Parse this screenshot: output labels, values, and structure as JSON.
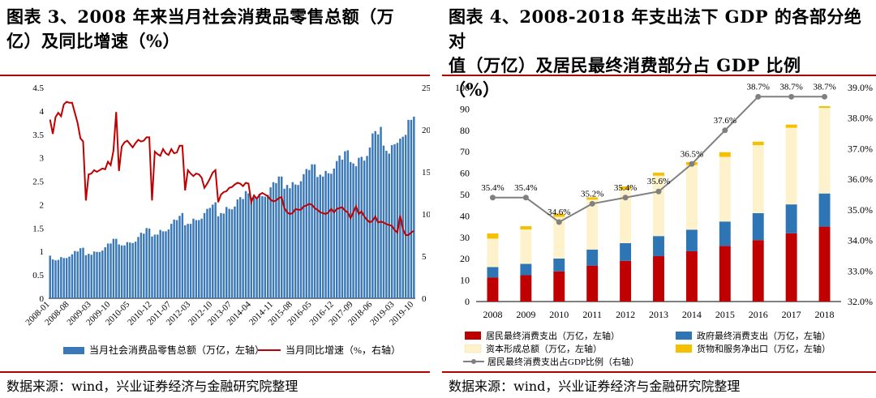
{
  "left": {
    "title_line1": "图表 3、2008 年来当月社会消费品零售总额（万",
    "title_line2": "亿）及同比增速（%）",
    "source": "数据来源：wind，兴业证券经济与金融研究院整理",
    "colors": {
      "bar": "#3a78b8",
      "line": "#c00000",
      "rule": "#b30000"
    },
    "chart_data": {
      "type": "bar+line",
      "x_tick_labels": [
        "2008-01",
        "2008-08",
        "2009-03",
        "2009-10",
        "2010-05",
        "2010-12",
        "2011-07",
        "2012-03",
        "2012-10",
        "2013-07",
        "2014-04",
        "2014-11",
        "2015-08",
        "2016-05",
        "2016-12",
        "2017-09",
        "2018-06",
        "2019-03",
        "2019-10"
      ],
      "yleft_ticks": [
        "0",
        "0.5",
        "1",
        "1.5",
        "2",
        "2.5",
        "3",
        "3.5",
        "4",
        "4.5"
      ],
      "yright_ticks": [
        "0",
        "5",
        "10",
        "15",
        "20",
        "25"
      ],
      "ylim_left": [
        0,
        4.5
      ],
      "ylim_right": [
        0,
        25
      ],
      "legend": [
        "当月社会消费品零售总额（万亿，左轴）",
        "当月同比增速（%，右轴）"
      ],
      "series": [
        {
          "name": "当月社会消费品零售总额（万亿，左轴）",
          "axis": "left",
          "type": "bar",
          "values": [
            0.91,
            0.83,
            0.81,
            0.82,
            0.88,
            0.86,
            0.86,
            0.89,
            0.94,
            1.01,
            1.0,
            1.07,
            1.08,
            0.92,
            0.95,
            0.93,
            1.0,
            0.99,
            0.99,
            1.02,
            1.09,
            1.17,
            1.17,
            1.27,
            1.27,
            1.15,
            1.13,
            1.13,
            1.2,
            1.19,
            1.18,
            1.21,
            1.31,
            1.4,
            1.38,
            1.5,
            1.49,
            1.32,
            1.36,
            1.36,
            1.46,
            1.43,
            1.43,
            1.47,
            1.59,
            1.68,
            1.67,
            1.76,
            1.82,
            1.56,
            1.59,
            1.59,
            1.7,
            1.67,
            1.67,
            1.7,
            1.82,
            1.91,
            1.93,
            2.0,
            2.05,
            1.75,
            1.82,
            1.81,
            1.95,
            1.91,
            1.9,
            1.96,
            2.11,
            2.16,
            2.12,
            2.29,
            2.24,
            2.15,
            2.15,
            2.11,
            2.23,
            2.18,
            2.17,
            2.21,
            2.37,
            2.48,
            2.46,
            2.6,
            2.6,
            2.34,
            2.42,
            2.35,
            2.48,
            2.43,
            2.42,
            2.5,
            2.65,
            2.76,
            2.74,
            2.86,
            2.86,
            2.59,
            2.64,
            2.6,
            2.72,
            2.67,
            2.66,
            2.77,
            2.93,
            3.05,
            2.96,
            3.14,
            3.16,
            2.91,
            2.88,
            2.82,
            3.0,
            3.02,
            2.94,
            3.04,
            3.22,
            3.52,
            3.57,
            3.5,
            3.66,
            3.26,
            3.15,
            3.09,
            3.27,
            3.29,
            3.32,
            3.41,
            3.45,
            3.49,
            3.81,
            3.81,
            3.88
          ],
          "note_first_label": "2008-01"
        },
        {
          "name": "当月同比增速（%，右轴）",
          "axis": "right",
          "type": "line",
          "values": [
            21.2,
            19.5,
            21.5,
            22.0,
            21.6,
            23.0,
            23.3,
            23.2,
            23.2,
            22.0,
            20.8,
            19.0,
            18.6,
            11.6,
            14.7,
            14.8,
            15.2,
            15.0,
            15.2,
            15.4,
            15.3,
            16.2,
            15.8,
            17.5,
            22.1,
            15.1,
            18.0,
            18.5,
            18.7,
            18.3,
            17.9,
            18.4,
            18.8,
            18.6,
            18.7,
            19.1,
            19.1,
            11.6,
            17.4,
            17.1,
            16.9,
            17.7,
            17.2,
            17.0,
            17.7,
            17.2,
            17.3,
            18.1,
            18.1,
            12.8,
            15.2,
            14.8,
            14.5,
            14.8,
            14.7,
            14.3,
            13.1,
            13.6,
            14.2,
            14.9,
            15.2,
            11.4,
            12.3,
            12.6,
            12.7,
            13.1,
            13.2,
            13.5,
            13.7,
            13.6,
            13.3,
            13.7,
            13.6,
            11.4,
            12.2,
            11.8,
            12.3,
            12.5,
            12.3,
            12.1,
            11.7,
            11.5,
            11.6,
            11.9,
            12.0,
            10.7,
            10.2,
            10.0,
            10.1,
            10.6,
            10.5,
            10.5,
            10.9,
            11.0,
            11.2,
            11.1,
            10.7,
            10.5,
            10.2,
            10.1,
            10.0,
            10.2,
            10.6,
            10.2,
            10.6,
            10.7,
            10.8,
            10.4,
            10.2,
            9.5,
            10.2,
            10.9,
            10.0,
            10.3,
            9.7,
            9.3,
            9.0,
            9.2,
            9.7,
            9.0,
            9.1,
            9.0,
            8.8,
            8.7,
            8.6,
            8.1,
            7.8,
            9.8,
            8.2,
            7.5,
            7.5,
            7.8,
            8.0
          ],
          "first_label": "2008-01"
        }
      ]
    }
  },
  "right": {
    "title_line1": "图表 4、2008-2018 年支出法下 GDP 的各部分绝对",
    "title_line2": "值（万亿）及居民最终消费部分占 GDP 比例",
    "title_line3": "（%）",
    "source": "数据来源：wind，兴业证券经济与金融研究院整理",
    "colors": {
      "resident": "#c00000",
      "government": "#2e75b6",
      "capital": "#fdf2cc",
      "net_export": "#f5c000",
      "ratio_line": "#808080"
    },
    "chart_data": {
      "type": "stacked-bar+line",
      "categories": [
        "2008",
        "2009",
        "2010",
        "2011",
        "2012",
        "2013",
        "2014",
        "2015",
        "2016",
        "2017",
        "2018"
      ],
      "yleft_ticks": [
        "0",
        "10",
        "20",
        "30",
        "40",
        "50",
        "60",
        "70",
        "80",
        "90",
        "100"
      ],
      "yright_ticks": [
        "32.0%",
        "33.0%",
        "34.0%",
        "35.0%",
        "36.0%",
        "37.0%",
        "38.0%",
        "39.0%"
      ],
      "ylim_left": [
        0,
        100
      ],
      "ylim_right": [
        32,
        39
      ],
      "series": [
        {
          "name": "居民最终消费支出（万亿，左轴）",
          "values": [
            11.2,
            12.3,
            14.1,
            16.8,
            19.0,
            21.2,
            23.5,
            26.0,
            28.7,
            31.9,
            35.0
          ]
        },
        {
          "name": "政府最终消费支出（万亿，左轴）",
          "values": [
            4.9,
            5.3,
            6.0,
            7.5,
            8.3,
            9.4,
            10.1,
            11.4,
            12.6,
            13.5,
            15.5
          ]
        },
        {
          "name": "资本形成总额（万亿，左轴）",
          "values": [
            13.3,
            16.1,
            19.5,
            23.3,
            25.1,
            28.2,
            30.2,
            30.2,
            31.8,
            35.8,
            40.0
          ]
        },
        {
          "name": "货物和服务净出口（万亿，左轴）",
          "values": [
            2.4,
            1.5,
            1.5,
            1.1,
            1.4,
            1.4,
            1.4,
            2.2,
            1.6,
            1.5,
            0.8
          ]
        }
      ],
      "line": {
        "name": "居民最终消费支出占GDP比例（右轴）",
        "values": [
          35.4,
          35.4,
          34.6,
          35.2,
          35.4,
          35.6,
          36.5,
          37.6,
          38.7,
          38.7,
          38.7
        ],
        "labels": [
          "35.4%",
          "35.4%",
          "34.6%",
          "35.2%",
          "35.4%",
          "35.6%",
          "36.5%",
          "37.6%",
          "38.7%",
          "38.7%",
          "38.7%"
        ]
      },
      "legend": [
        "居民最终消费支出（万亿，左轴）",
        "政府最终消费支出（万亿，左轴）",
        "资本形成总额（万亿，左轴）",
        "货物和服务净出口（万亿，左轴）",
        "居民最终消费支出占GDP比例（右轴）"
      ]
    }
  }
}
